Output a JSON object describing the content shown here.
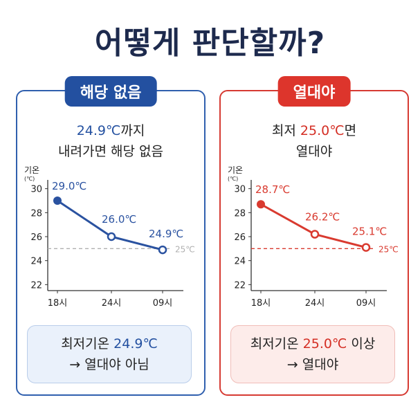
{
  "title": "어떻게 판단할까?",
  "panels": [
    {
      "id": "left",
      "badge": "해당 없음",
      "desc_value": "24.9℃",
      "desc_rest1": "까지",
      "desc_line2": "내려가면 해당 없음",
      "summary_prefix": "최저기온 ",
      "summary_value": "24.9℃",
      "summary_suffix": "",
      "summary_line2": "→ 열대야 아님",
      "color": "#2350a0"
    },
    {
      "id": "right",
      "badge": "열대야",
      "desc_pre": "최저 ",
      "desc_value": "25.0℃",
      "desc_rest1": "면",
      "desc_line2": "열대야",
      "summary_prefix": "최저기온 ",
      "summary_value": "25.0℃",
      "summary_suffix": " 이상",
      "summary_line2": "→ 열대야",
      "color": "#d42e24"
    }
  ],
  "chart_data": [
    {
      "type": "line",
      "ylabel": "기온",
      "yunit": "(℃)",
      "categories": [
        "18시",
        "24시",
        "09시"
      ],
      "values": [
        29.0,
        26.0,
        24.9
      ],
      "value_labels": [
        "29.0℃",
        "26.0℃",
        "24.9℃"
      ],
      "yticks": [
        22,
        24,
        26,
        28,
        30
      ],
      "ylim": [
        21.5,
        30.5
      ],
      "threshold": 25,
      "threshold_label": "25℃",
      "line_color": "#2a52a0",
      "threshold_color": "#b0b0b0"
    },
    {
      "type": "line",
      "ylabel": "기온",
      "yunit": "(℃)",
      "categories": [
        "18시",
        "24시",
        "09시"
      ],
      "values": [
        28.7,
        26.2,
        25.1
      ],
      "value_labels": [
        "28.7℃",
        "26.2℃",
        "25.1℃"
      ],
      "yticks": [
        22,
        24,
        26,
        28,
        30
      ],
      "ylim": [
        21.5,
        30.5
      ],
      "threshold": 25,
      "threshold_label": "25℃",
      "line_color": "#d93a2f",
      "threshold_color": "#d93a2f"
    }
  ]
}
